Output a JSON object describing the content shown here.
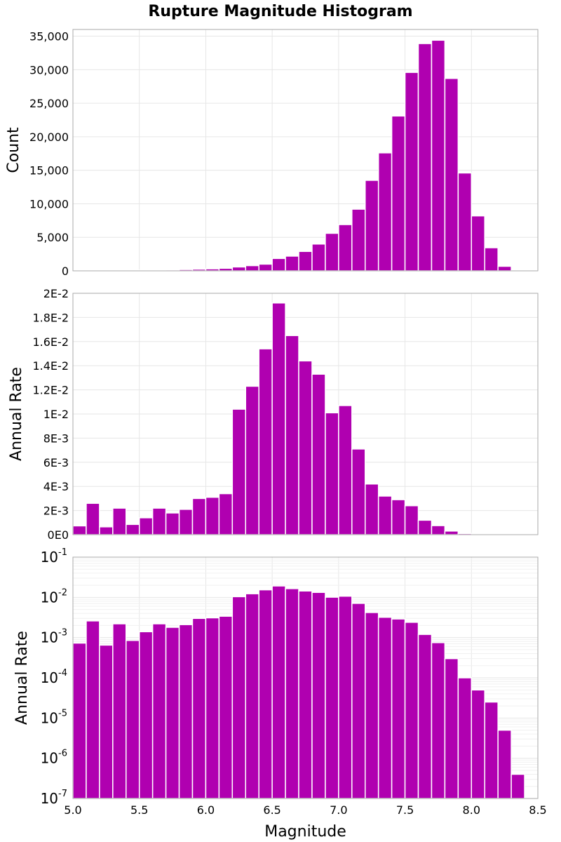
{
  "title": "Rupture Magnitude Histogram",
  "colors": {
    "bar": "#b000b0",
    "bar_edge": "#ffffff"
  },
  "chart_data": [
    {
      "type": "bar",
      "scale": "linear",
      "ylabel": "Count",
      "xlim": [
        5.0,
        8.5
      ],
      "ylim": [
        0,
        36000
      ],
      "yticks": [
        0,
        5000,
        10000,
        15000,
        20000,
        25000,
        30000,
        35000
      ],
      "ytick_labels": [
        "0",
        "5,000",
        "10,000",
        "15,000",
        "20,000",
        "25,000",
        "30,000",
        "35,000"
      ],
      "bin_width": 0.1,
      "x": [
        5.05,
        5.15,
        5.25,
        5.35,
        5.45,
        5.55,
        5.65,
        5.75,
        5.85,
        5.95,
        6.05,
        6.15,
        6.25,
        6.35,
        6.45,
        6.55,
        6.65,
        6.75,
        6.85,
        6.95,
        7.05,
        7.15,
        7.25,
        7.35,
        7.45,
        7.55,
        7.65,
        7.75,
        7.85,
        7.95,
        8.05,
        8.15,
        8.25,
        8.35
      ],
      "values": [
        20,
        40,
        60,
        80,
        90,
        110,
        130,
        160,
        200,
        250,
        300,
        380,
        580,
        780,
        1000,
        1850,
        2200,
        2900,
        4000,
        5600,
        6900,
        9200,
        13500,
        17600,
        23100,
        29600,
        33900,
        34400,
        28700,
        14600,
        8200,
        3450,
        680,
        60
      ]
    },
    {
      "type": "bar",
      "scale": "linear",
      "ylabel": "Annual Rate",
      "xlim": [
        5.0,
        8.5
      ],
      "ylim": [
        0,
        0.02
      ],
      "yticks": [
        0,
        0.002,
        0.004,
        0.006,
        0.008,
        0.01,
        0.012,
        0.014,
        0.016,
        0.018,
        0.02
      ],
      "ytick_labels": [
        "0E0",
        "2E-3",
        "4E-3",
        "6E-3",
        "8E-3",
        "1E-2",
        "1.2E-2",
        "1.4E-2",
        "1.6E-2",
        "1.8E-2",
        "2E-2"
      ],
      "bin_width": 0.1,
      "x": [
        5.05,
        5.15,
        5.25,
        5.35,
        5.45,
        5.55,
        5.65,
        5.75,
        5.85,
        5.95,
        6.05,
        6.15,
        6.25,
        6.35,
        6.45,
        6.55,
        6.65,
        6.75,
        6.85,
        6.95,
        7.05,
        7.15,
        7.25,
        7.35,
        7.45,
        7.55,
        7.65,
        7.75,
        7.85,
        7.95,
        8.05,
        8.15,
        8.25,
        8.35
      ],
      "values": [
        0.00073,
        0.0026,
        0.00065,
        0.0022,
        0.00085,
        0.0014,
        0.0022,
        0.0018,
        0.0021,
        0.003,
        0.0031,
        0.0034,
        0.0104,
        0.0123,
        0.0154,
        0.0192,
        0.0165,
        0.0144,
        0.0133,
        0.0101,
        0.0107,
        0.0071,
        0.0042,
        0.0032,
        0.0029,
        0.0024,
        0.0012,
        0.00075,
        0.0003,
        0.0001,
        5e-05,
        2.5e-05,
        5e-06,
        4e-07
      ]
    },
    {
      "type": "bar",
      "scale": "log",
      "ylabel": "Annual Rate",
      "xlabel": "Magnitude",
      "xlim": [
        5.0,
        8.5
      ],
      "ylim": [
        1e-07,
        0.1
      ],
      "ytick_exponents": [
        "-7",
        "-6",
        "-5",
        "-4",
        "-3",
        "-2",
        "-1"
      ],
      "ytick_base": "10",
      "xticks": [
        5.0,
        5.5,
        6.0,
        6.5,
        7.0,
        7.5,
        8.0,
        8.5
      ],
      "xtick_labels": [
        "5.0",
        "5.5",
        "6.0",
        "6.5",
        "7.0",
        "7.5",
        "8.0",
        "8.5"
      ],
      "bin_width": 0.1,
      "x": [
        5.05,
        5.15,
        5.25,
        5.35,
        5.45,
        5.55,
        5.65,
        5.75,
        5.85,
        5.95,
        6.05,
        6.15,
        6.25,
        6.35,
        6.45,
        6.55,
        6.65,
        6.75,
        6.85,
        6.95,
        7.05,
        7.15,
        7.25,
        7.35,
        7.45,
        7.55,
        7.65,
        7.75,
        7.85,
        7.95,
        8.05,
        8.15,
        8.25,
        8.35
      ],
      "values": [
        0.00073,
        0.0026,
        0.00065,
        0.0022,
        0.00085,
        0.0014,
        0.0022,
        0.0018,
        0.0021,
        0.003,
        0.0031,
        0.0034,
        0.0104,
        0.0123,
        0.0154,
        0.0192,
        0.0165,
        0.0144,
        0.0133,
        0.0101,
        0.0107,
        0.0071,
        0.0042,
        0.0032,
        0.0029,
        0.0024,
        0.0012,
        0.00075,
        0.0003,
        0.0001,
        5e-05,
        2.5e-05,
        5e-06,
        4e-07
      ]
    }
  ]
}
